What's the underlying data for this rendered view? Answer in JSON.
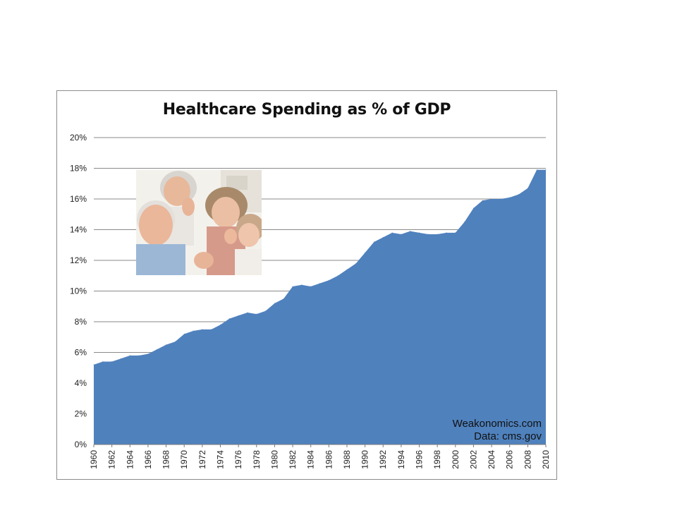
{
  "chart_data": {
    "type": "area",
    "title": "Healthcare Spending as % of GDP",
    "xlabel": "",
    "ylabel": "",
    "x": [
      1960,
      1961,
      1962,
      1963,
      1964,
      1965,
      1966,
      1967,
      1968,
      1969,
      1970,
      1971,
      1972,
      1973,
      1974,
      1975,
      1976,
      1977,
      1978,
      1979,
      1980,
      1981,
      1982,
      1983,
      1984,
      1985,
      1986,
      1987,
      1988,
      1989,
      1990,
      1991,
      1992,
      1993,
      1994,
      1995,
      1996,
      1997,
      1998,
      1999,
      2000,
      2001,
      2002,
      2003,
      2004,
      2005,
      2006,
      2007,
      2008,
      2009,
      2010
    ],
    "x_tick_labels": [
      "1960",
      "1962",
      "1964",
      "1966",
      "1968",
      "1970",
      "1972",
      "1974",
      "1976",
      "1978",
      "1980",
      "1982",
      "1984",
      "1986",
      "1988",
      "1990",
      "1992",
      "1994",
      "1996",
      "1998",
      "2000",
      "2002",
      "2004",
      "2006",
      "2008",
      "2010"
    ],
    "series": [
      {
        "values": [
          5.2,
          5.4,
          5.4,
          5.6,
          5.8,
          5.8,
          5.9,
          6.2,
          6.5,
          6.7,
          7.2,
          7.4,
          7.5,
          7.5,
          7.8,
          8.2,
          8.4,
          8.6,
          8.5,
          8.7,
          9.2,
          9.5,
          10.3,
          10.4,
          10.3,
          10.5,
          10.7,
          11.0,
          11.4,
          11.8,
          12.5,
          13.2,
          13.5,
          13.8,
          13.7,
          13.9,
          13.8,
          13.7,
          13.7,
          13.8,
          13.8,
          14.5,
          15.4,
          15.9,
          16.0,
          16.0,
          16.1,
          16.3,
          16.7,
          17.9,
          17.9
        ],
        "color": "#4f81bd"
      }
    ],
    "ylim": [
      0,
      20
    ],
    "y_ticks": [
      0,
      2,
      4,
      6,
      8,
      10,
      12,
      14,
      16,
      18,
      20
    ],
    "y_tick_labels": [
      "0%",
      "2%",
      "4%",
      "6%",
      "8%",
      "10%",
      "12%",
      "14%",
      "16%",
      "18%",
      "20%"
    ],
    "grid": true,
    "legend": "none",
    "annotations": [
      "Weakonomics.com",
      "Data: cms.gov"
    ]
  }
}
